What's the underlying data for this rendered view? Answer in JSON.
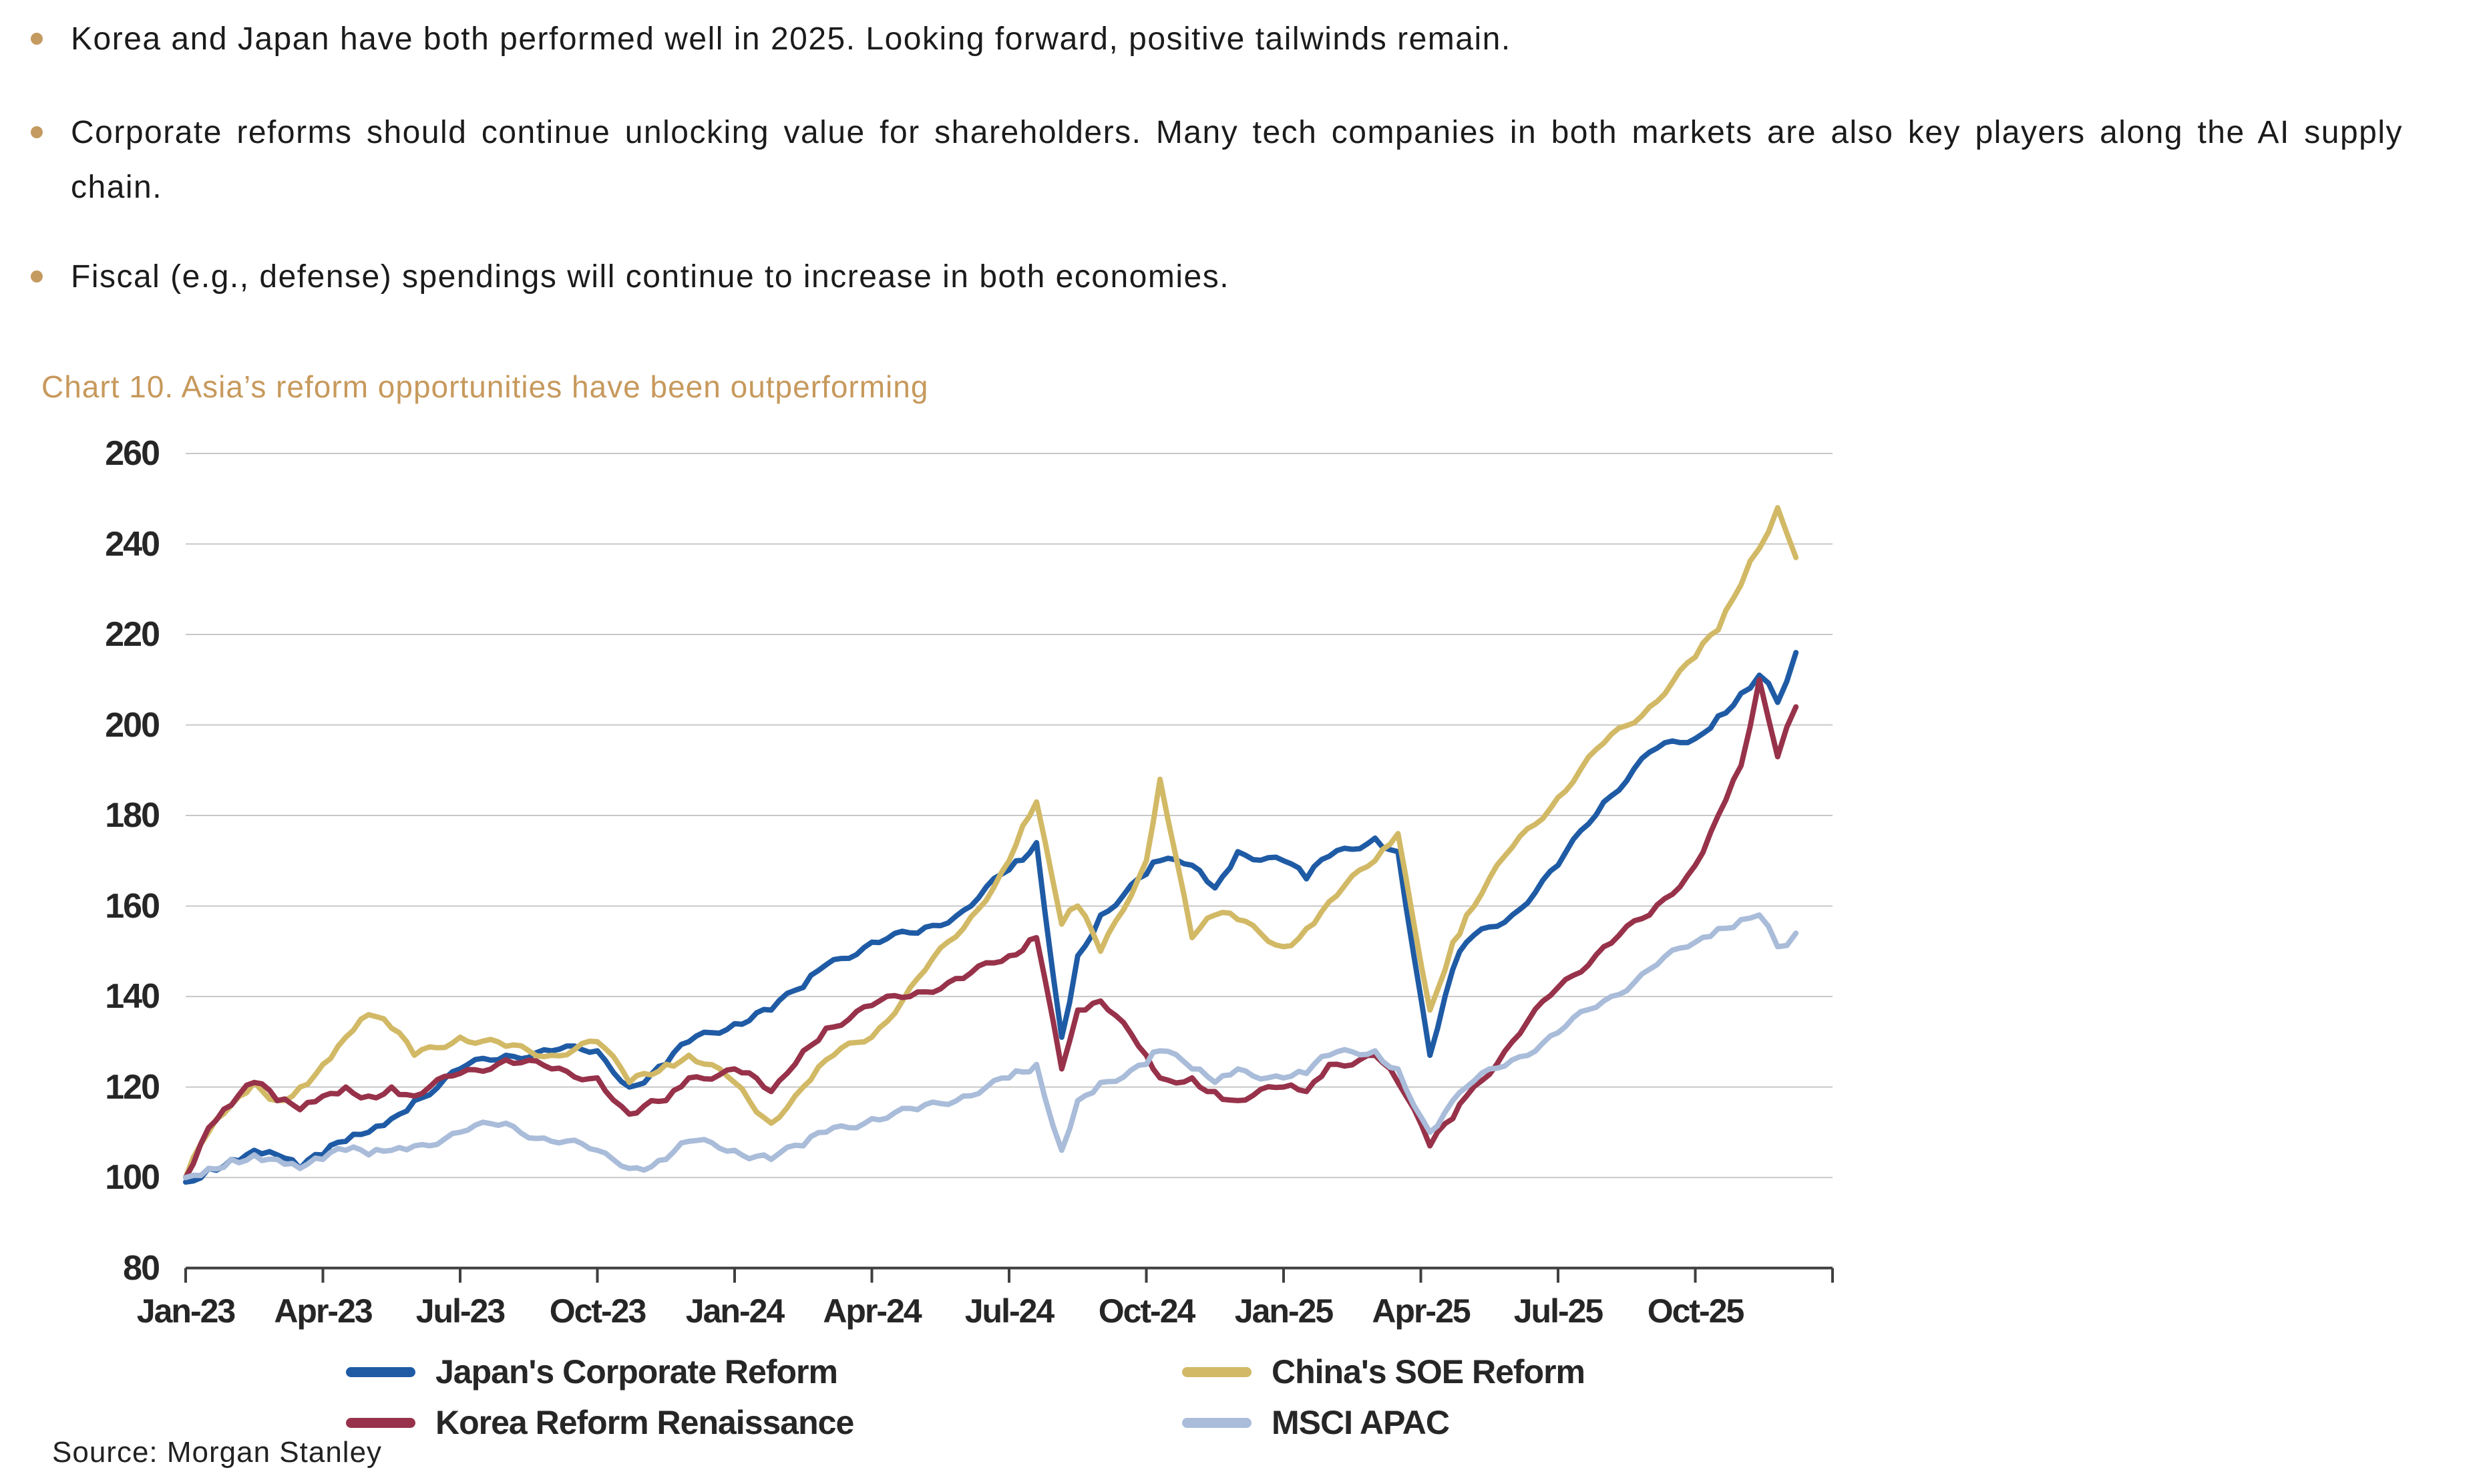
{
  "page": {
    "background": "#ffffff",
    "text_color": "#1b1b1b",
    "accent_gold": "#c7995c",
    "gridline_color": "#c8c8c8",
    "axis_color": "#3f3f3f"
  },
  "bullets": {
    "marker_color": "#c49a61",
    "items": [
      {
        "text": "Korea and Japan have both performed well in 2025. Looking forward, positive tailwinds remain."
      },
      {
        "text": "Corporate reforms should continue unlocking value for shareholders. Many tech companies in both markets are also key players along the AI supply chain."
      },
      {
        "text": "Fiscal (e.g., defense) spendings will continue to increase in both economies."
      }
    ]
  },
  "chart_data": {
    "type": "line",
    "title": "Chart 10. Asia’s reform opportunities have been outperforming",
    "title_color": "#c7995c",
    "xlabel": "",
    "ylabel": "",
    "x_unit": "months since Jan-2023",
    "xlim": [
      0,
      36
    ],
    "ylim": [
      80,
      260
    ],
    "grid": "horizontal",
    "legend_position": "bottom",
    "y_ticks": [
      80,
      100,
      120,
      140,
      160,
      180,
      200,
      220,
      240,
      260
    ],
    "x_tick_positions": [
      0,
      3,
      6,
      9,
      12,
      15,
      18,
      21,
      24,
      27,
      30,
      33
    ],
    "x_tick_labels": [
      "Jan-23",
      "Apr-23",
      "Jul-23",
      "Oct-23",
      "Jan-24",
      "Apr-24",
      "Jul-24",
      "Oct-24",
      "Jan-25",
      "Apr-25",
      "Jul-25",
      "Oct-25"
    ],
    "x": [
      0,
      0.5,
      1,
      1.5,
      2,
      2.5,
      3,
      3.5,
      4,
      4.5,
      5,
      6,
      7,
      8,
      9,
      9.7,
      10.5,
      11,
      12,
      12.8,
      13.5,
      14,
      15,
      16,
      17,
      18,
      18.6,
      19.15,
      19.5,
      20,
      21,
      21.3,
      22,
      22.5,
      23,
      24,
      24.5,
      25,
      26,
      26.5,
      27.2,
      27.7,
      28,
      29,
      30,
      31,
      32,
      33,
      33.5,
      34,
      34.4,
      34.8,
      35.2
    ],
    "series": [
      {
        "name": "Japan's Corporate Reform",
        "color": "#1f5ba5",
        "values": [
          99,
          102,
          104,
          106,
          105,
          102,
          105,
          108,
          110,
          113,
          117,
          124,
          127,
          128,
          128,
          120,
          125,
          130,
          134,
          137,
          142,
          147,
          152,
          154,
          159,
          168,
          174,
          131,
          149,
          158,
          167,
          170,
          169,
          164,
          172,
          170,
          166,
          171,
          175,
          172,
          127,
          146,
          152,
          158,
          169,
          183,
          194,
          197,
          202,
          207,
          211,
          205,
          216
        ]
      },
      {
        "name": "China's SOE Reform",
        "color": "#d2b966",
        "values": [
          100,
          110,
          116,
          121,
          117,
          120,
          125,
          131,
          136,
          133,
          127,
          131,
          129,
          127,
          130,
          121,
          125,
          127,
          121,
          112,
          120,
          126,
          131,
          144,
          155,
          170,
          183,
          156,
          160,
          150,
          170,
          188,
          153,
          158,
          157,
          151,
          155,
          161,
          170,
          176,
          137,
          152,
          158,
          173,
          184,
          196,
          204,
          215,
          221,
          231,
          239,
          248,
          237
        ]
      },
      {
        "name": "Korea Reform Renaissance",
        "color": "#97324a",
        "values": [
          100,
          111,
          116,
          121,
          117,
          115,
          118,
          120,
          118,
          120,
          118,
          123,
          126,
          124,
          122,
          114,
          117,
          122,
          124,
          119,
          128,
          133,
          138,
          141,
          144,
          149,
          153,
          124,
          137,
          139,
          127,
          122,
          122,
          119,
          117,
          120,
          119,
          125,
          127,
          121,
          107,
          113,
          118,
          130,
          142,
          151,
          158,
          169,
          180,
          191,
          210,
          193,
          204
        ]
      },
      {
        "name": "MSCI APAC",
        "color": "#a9bcd9",
        "values": [
          100,
          102,
          104,
          105,
          104,
          102,
          104,
          106,
          105,
          106,
          107,
          110,
          112,
          108,
          106,
          102,
          104,
          108,
          106,
          104,
          107,
          110,
          113,
          115,
          118,
          122,
          125,
          106,
          117,
          121,
          125,
          128,
          124,
          121,
          124,
          122,
          123,
          127,
          128,
          124,
          110,
          117,
          120,
          126,
          132,
          139,
          146,
          152,
          155,
          157,
          158,
          151,
          154
        ]
      }
    ]
  },
  "source": "Source: Morgan Stanley"
}
